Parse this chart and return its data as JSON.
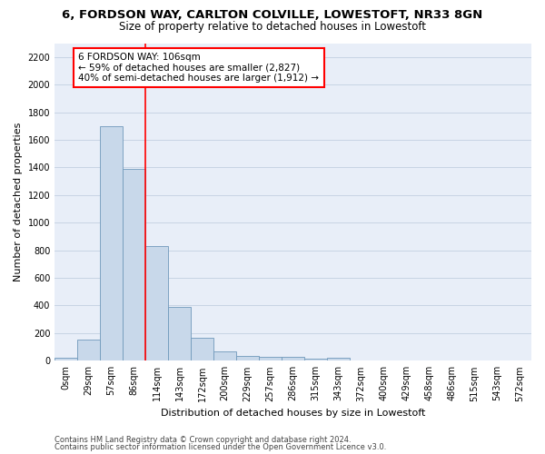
{
  "title1": "6, FORDSON WAY, CARLTON COLVILLE, LOWESTOFT, NR33 8GN",
  "title2": "Size of property relative to detached houses in Lowestoft",
  "xlabel": "Distribution of detached houses by size in Lowestoft",
  "ylabel": "Number of detached properties",
  "bar_labels": [
    "0sqm",
    "29sqm",
    "57sqm",
    "86sqm",
    "114sqm",
    "143sqm",
    "172sqm",
    "200sqm",
    "229sqm",
    "257sqm",
    "286sqm",
    "315sqm",
    "343sqm",
    "372sqm",
    "400sqm",
    "429sqm",
    "458sqm",
    "486sqm",
    "515sqm",
    "543sqm",
    "572sqm"
  ],
  "bar_values": [
    20,
    155,
    1700,
    1390,
    830,
    390,
    165,
    70,
    32,
    28,
    28,
    15,
    20,
    0,
    0,
    0,
    0,
    0,
    0,
    0,
    0
  ],
  "bar_color": "#c8d8ea",
  "bar_edge_color": "#7099bb",
  "bar_width": 1.0,
  "vline_x": 3.5,
  "vline_color": "red",
  "annotation_text": "6 FORDSON WAY: 106sqm\n← 59% of detached houses are smaller (2,827)\n40% of semi-detached houses are larger (1,912) →",
  "ylim": [
    0,
    2300
  ],
  "yticks": [
    0,
    200,
    400,
    600,
    800,
    1000,
    1200,
    1400,
    1600,
    1800,
    2000,
    2200
  ],
  "grid_color": "#c8d4e4",
  "bg_color": "#e8eef8",
  "footnote1": "Contains HM Land Registry data © Crown copyright and database right 2024.",
  "footnote2": "Contains public sector information licensed under the Open Government Licence v3.0.",
  "title1_fontsize": 9.5,
  "title2_fontsize": 8.5,
  "xlabel_fontsize": 8,
  "ylabel_fontsize": 8,
  "tick_fontsize": 7,
  "annot_fontsize": 7.5,
  "footnote_fontsize": 6
}
